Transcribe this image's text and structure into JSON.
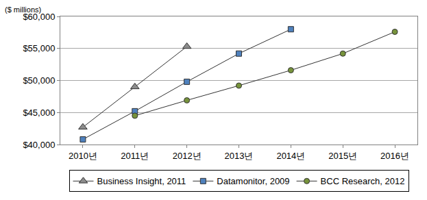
{
  "chart_data": {
    "type": "line",
    "y_label": "($ millions)",
    "categories": [
      "2010년",
      "2011년",
      "2012년",
      "2013년",
      "2014년",
      "2015년",
      "2016년"
    ],
    "series": [
      {
        "name": "Business Insight, 2011",
        "color": "#8c8c8c",
        "marker": "triangle-up",
        "values": [
          42700,
          49000,
          55300,
          null,
          null,
          null,
          null
        ]
      },
      {
        "name": "Datamonitor, 2009",
        "color": "#4f81bd",
        "marker": "square",
        "values": [
          40800,
          45200,
          49800,
          54200,
          58000,
          null,
          null
        ]
      },
      {
        "name": "BCC Research, 2012",
        "color": "#77933c",
        "marker": "circle",
        "values": [
          null,
          44500,
          46900,
          49200,
          51600,
          54200,
          57600
        ]
      }
    ],
    "ylim": [
      40000,
      60000
    ],
    "yticks": [
      {
        "value": 40000,
        "label": "$40,000"
      },
      {
        "value": 45000,
        "label": "$45,000"
      },
      {
        "value": 50000,
        "label": "$50,000"
      },
      {
        "value": 55000,
        "label": "$55,000"
      },
      {
        "value": 60000,
        "label": "$60,000"
      }
    ],
    "grid": true,
    "legend": "bottom"
  }
}
